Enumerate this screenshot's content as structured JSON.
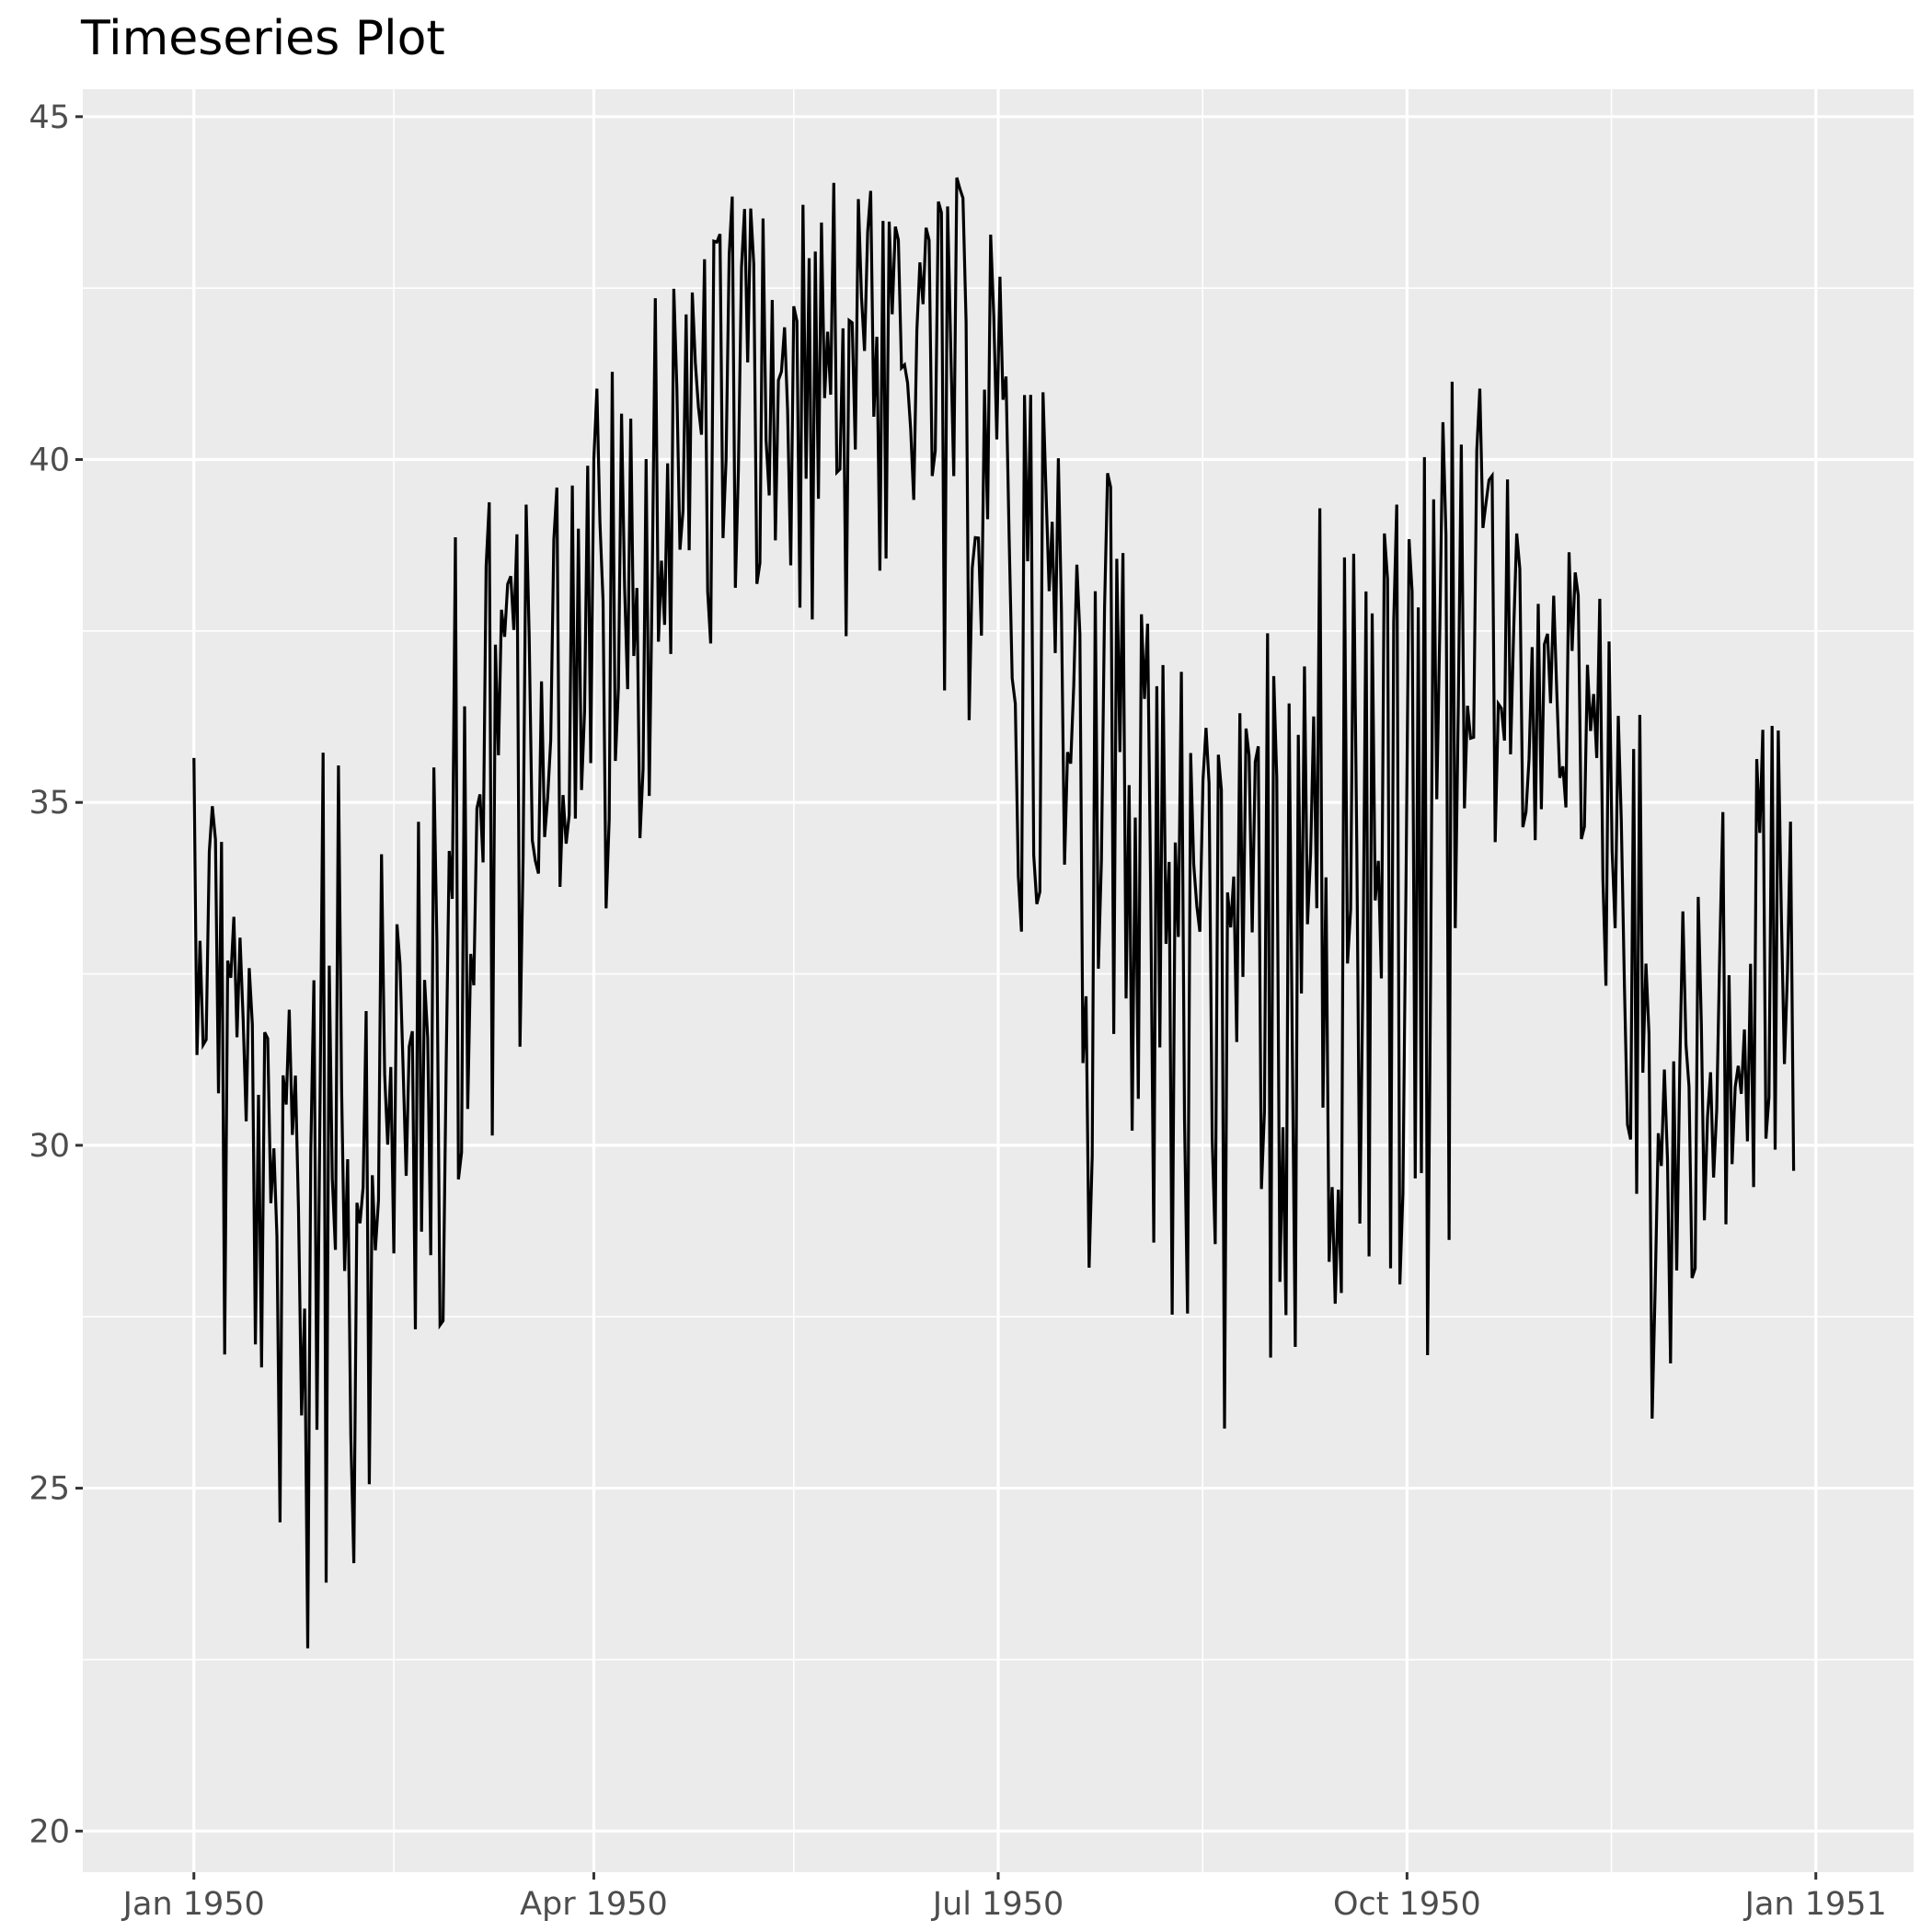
{
  "chart_data": {
    "type": "line",
    "title": "Timeseries Plot",
    "xlabel": "",
    "ylabel": "",
    "grid": true,
    "x_axis_type": "date",
    "xlim": [
      "1949-12-07",
      "1951-01-23"
    ],
    "ylim": [
      19.4,
      45.4
    ],
    "x_ticks": [
      {
        "date": "1950-01-01",
        "label": "Jan 1950"
      },
      {
        "date": "1950-04-01",
        "label": "Apr 1950"
      },
      {
        "date": "1950-07-01",
        "label": "Jul 1950"
      },
      {
        "date": "1950-10-01",
        "label": "Oct 1950"
      },
      {
        "date": "1951-01-01",
        "label": "Jan 1951"
      }
    ],
    "x_minor_ticks": [
      "1950-02-15",
      "1950-05-16",
      "1950-08-16",
      "1950-11-16"
    ],
    "y_ticks": [
      20,
      25,
      30,
      35,
      40,
      45
    ],
    "y_minor_ticks": [
      22.5,
      27.5,
      32.5,
      37.5,
      42.5
    ],
    "series": [
      {
        "color": "#000000",
        "x": [
          "1950-01-01",
          "1950-01-11",
          "1950-01-21",
          "1950-01-31",
          "1950-02-10",
          "1950-02-20",
          "1950-03-02",
          "1950-03-12",
          "1950-03-22",
          "1950-04-01",
          "1950-04-11",
          "1950-04-21",
          "1950-05-01",
          "1950-05-11",
          "1950-05-21",
          "1950-05-31",
          "1950-06-10",
          "1950-06-20",
          "1950-06-30",
          "1950-07-10",
          "1950-07-20",
          "1950-07-30",
          "1950-08-09",
          "1950-08-19",
          "1950-08-29",
          "1950-09-08",
          "1950-09-18",
          "1950-09-28",
          "1950-10-08",
          "1950-10-18",
          "1950-10-28",
          "1950-11-07",
          "1950-11-17",
          "1950-11-27",
          "1950-12-07",
          "1950-12-17",
          "1950-12-27"
        ],
        "y": [
          34.5,
          31.0,
          27.5,
          31.5,
          31.5,
          30.5,
          34.0,
          37.0,
          36.5,
          38.0,
          37.5,
          39.5,
          41.5,
          42.0,
          41.5,
          42.0,
          41.0,
          41.5,
          40.5,
          37.0,
          34.0,
          34.0,
          33.5,
          32.0,
          32.5,
          34.0,
          35.0,
          35.5,
          36.5,
          37.5,
          37.0,
          36.5,
          33.5,
          31.0,
          30.5,
          31.5,
          33.5
        ],
        "y_low": [
          29.4,
          24.4,
          20.4,
          21.4,
          24.4,
          26.6,
          27.6,
          29.4,
          32.8,
          33.0,
          32.6,
          38.7,
          36.2,
          38.8,
          37.2,
          36.0,
          38.4,
          35.6,
          36.4,
          28.6,
          27.4,
          28.2,
          26.2,
          25.6,
          25.4,
          26.8,
          27.0,
          28.0,
          26.5,
          29.2,
          34.2,
          35.0,
          31.0,
          24.8,
          28.4,
          29.0,
          29.5
        ],
        "y_high": [
          37.8,
          33.8,
          30.8,
          37.6,
          32.8,
          35.8,
          40.0,
          38.8,
          40.0,
          43.5,
          44.0,
          43.0,
          43.8,
          44.2,
          43.6,
          44.2,
          43.4,
          43.8,
          43.6,
          41.5,
          39.6,
          40.0,
          37.2,
          36.2,
          37.0,
          40.0,
          38.8,
          38.5,
          41.3,
          40.2,
          38.8,
          39.3,
          37.5,
          35.5,
          34.8,
          36.3,
          37.2
        ]
      }
    ]
  }
}
